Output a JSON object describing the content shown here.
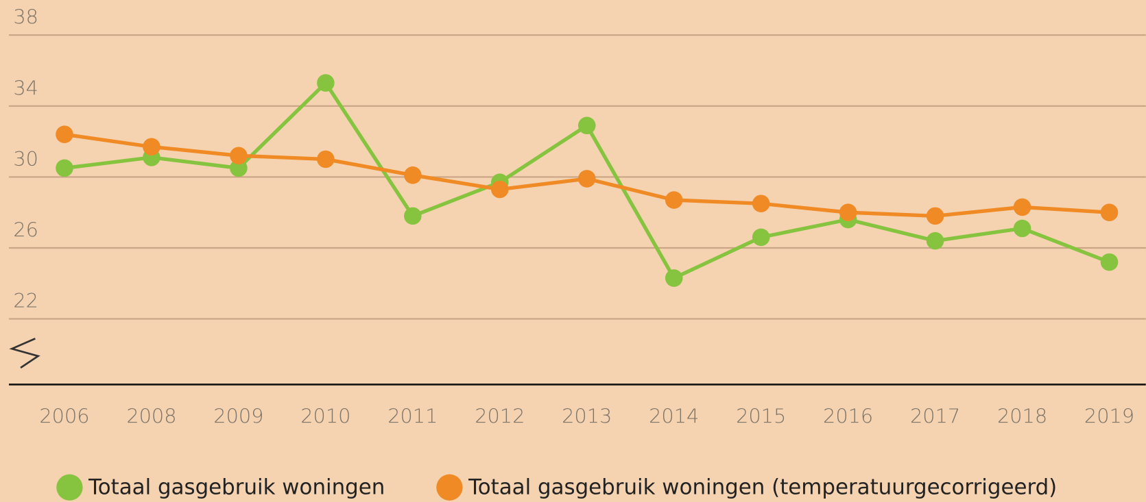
{
  "chart_data": {
    "type": "line",
    "categories": [
      "2006",
      "2008",
      "2009",
      "2010",
      "2011",
      "2012",
      "2013",
      "2014",
      "2015",
      "2016",
      "2017",
      "2018",
      "2019"
    ],
    "series": [
      {
        "name": "Totaal gasgebruik woningen",
        "color": "#86c440",
        "values": [
          30.5,
          31.1,
          30.5,
          35.3,
          27.8,
          29.7,
          32.9,
          24.3,
          26.6,
          27.6,
          26.4,
          27.1,
          25.2
        ]
      },
      {
        "name": "Totaal gasgebruik woningen (temperatuurgecorrigeerd)",
        "color": "#f08a24",
        "values": [
          32.4,
          31.7,
          31.2,
          31.0,
          30.1,
          29.3,
          29.9,
          28.7,
          28.5,
          28.0,
          27.8,
          28.3,
          28.0
        ]
      }
    ],
    "ylim": [
      18.3,
      38
    ],
    "yticks": [
      22,
      26,
      30,
      34,
      38
    ],
    "grid": true
  }
}
